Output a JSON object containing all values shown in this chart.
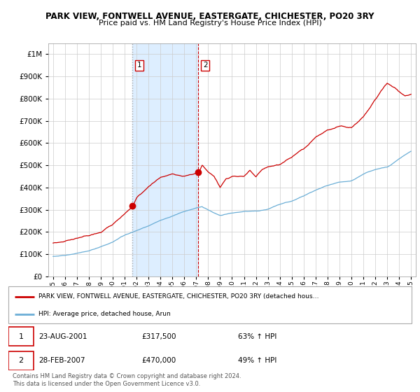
{
  "title": "PARK VIEW, FONTWELL AVENUE, EASTERGATE, CHICHESTER, PO20 3RY",
  "subtitle": "Price paid vs. HM Land Registry's House Price Index (HPI)",
  "legend_line1": "PARK VIEW, FONTWELL AVENUE, EASTERGATE, CHICHESTER, PO20 3RY (detached hous…",
  "legend_line2": "HPI: Average price, detached house, Arun",
  "sale1_date": "23-AUG-2001",
  "sale1_price": "£317,500",
  "sale1_hpi": "63% ↑ HPI",
  "sale2_date": "28-FEB-2007",
  "sale2_price": "£470,000",
  "sale2_hpi": "49% ↑ HPI",
  "footnote": "Contains HM Land Registry data © Crown copyright and database right 2024.\nThis data is licensed under the Open Government Licence v3.0.",
  "hpi_color": "#6baed6",
  "sale_color": "#cc0000",
  "sale1_x": 2001.64,
  "sale1_y": 317500,
  "sale2_x": 2007.16,
  "sale2_y": 470000,
  "ylim": [
    0,
    1050000
  ],
  "xlim": [
    1994.6,
    2025.4
  ],
  "background_shade_color": "#ddeeff",
  "sale1_vline_color": "#aaaaaa",
  "sale2_vline_color": "#cc0000"
}
